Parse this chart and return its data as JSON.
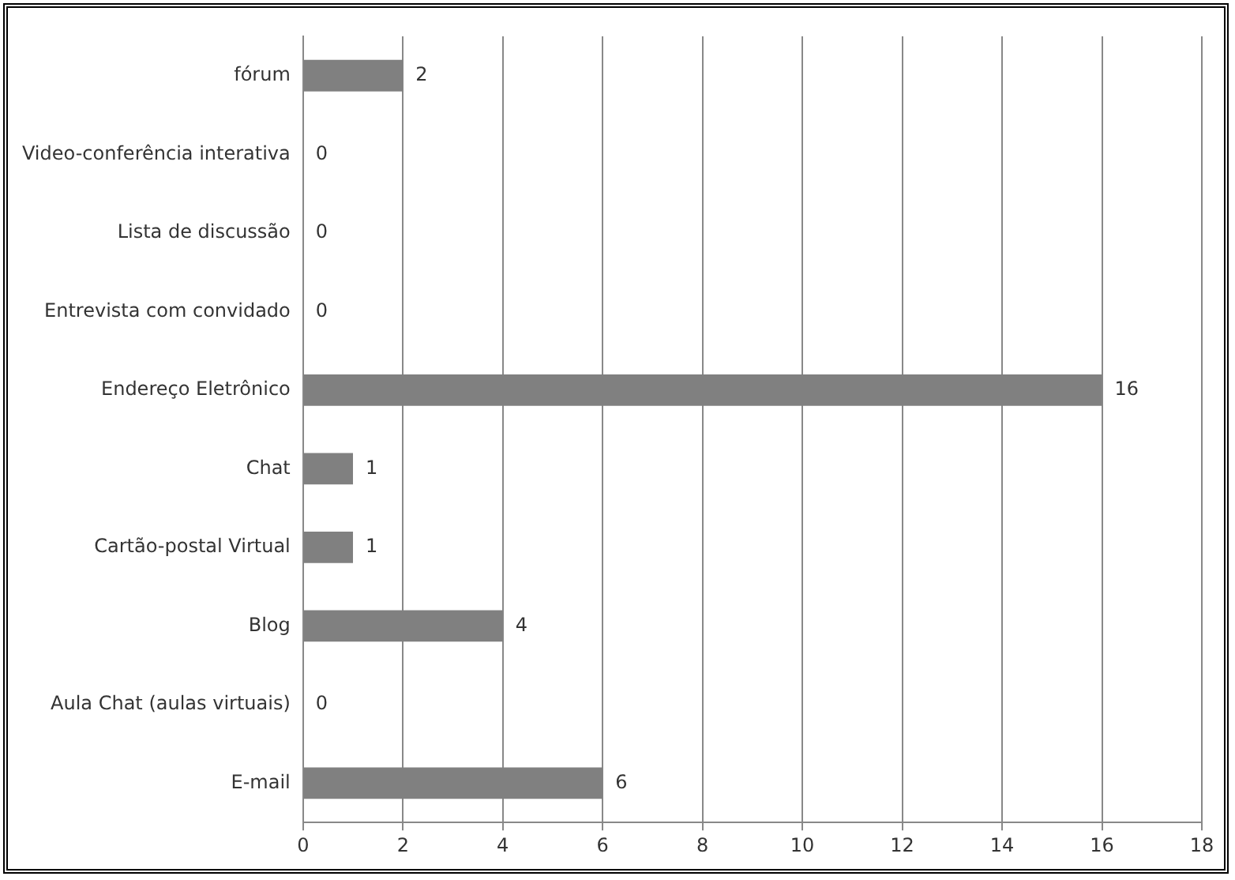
{
  "chart_data": {
    "type": "bar",
    "orientation": "horizontal",
    "categories": [
      "fórum",
      "Video-conferência interativa",
      "Lista de discussão",
      "Entrevista com convidado",
      "Endereço Eletrônico",
      "Chat",
      "Cartão-postal Virtual",
      "Blog",
      "Aula Chat (aulas virtuais)",
      "E-mail"
    ],
    "values": [
      2,
      0,
      0,
      0,
      16,
      1,
      1,
      4,
      0,
      6
    ],
    "color": "#808080",
    "xlim": [
      0,
      18
    ],
    "xticks": [
      0,
      2,
      4,
      6,
      8,
      10,
      12,
      14,
      16,
      18
    ],
    "grid": "x",
    "data_labels": true,
    "legend": false
  }
}
